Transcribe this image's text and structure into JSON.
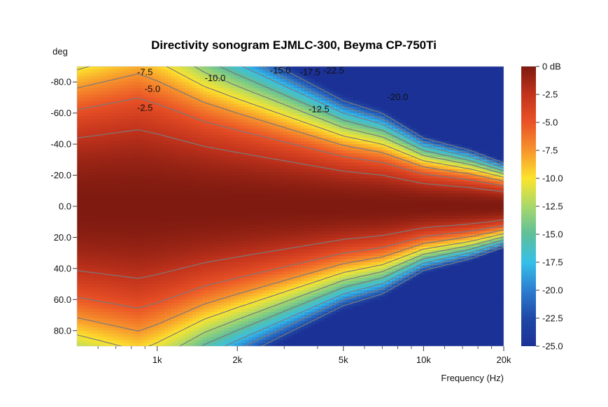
{
  "chart_data": {
    "type": "heatmap",
    "title": "Directivity sonogram EJMLC-300, Beyma CP-750Ti",
    "ylabel": "deg",
    "xlabel": "Frequency (Hz)",
    "x_scale": "log",
    "xlim": [
      500,
      20000
    ],
    "ylim": [
      -90,
      90
    ],
    "y_ticks": [
      -80,
      -60,
      -40,
      -20,
      0,
      20,
      40,
      60,
      80
    ],
    "y_tick_labels": [
      "-80.0",
      "-60.0",
      "-40.0",
      "-20.0",
      "0.0",
      "20.0",
      "40.0",
      "60.0",
      "80.0"
    ],
    "x_ticks": [
      1000,
      2000,
      5000,
      10000,
      20000
    ],
    "x_tick_labels": [
      "1k",
      "2k",
      "5k",
      "10k",
      "20k"
    ],
    "colorbar": {
      "unit_label": "0 dB",
      "range": [
        -25,
        0
      ],
      "ticks": [
        0,
        -2.5,
        -5,
        -7.5,
        -10,
        -12.5,
        -15,
        -17.5,
        -20,
        -22.5,
        -25
      ],
      "tick_labels": [
        "0 dB",
        "-2.5",
        "-5.0",
        "-7.5",
        "-10.0",
        "-12.5",
        "-15.0",
        "-17.5",
        "-20.0",
        "-22.5",
        "-25.0"
      ],
      "colors": [
        "#7e1a10",
        "#c2331c",
        "#ea5226",
        "#f7942c",
        "#fce42c",
        "#a8d86a",
        "#5fbf9a",
        "#35c0e8",
        "#2c7dd0",
        "#1f49a6",
        "#1b3196"
      ]
    },
    "contour_levels": [
      -2.5,
      -5,
      -7.5,
      -10,
      -12.5,
      -15,
      -17.5,
      -20,
      -22.5
    ],
    "contour_labels": [
      {
        "text": "-7.5",
        "freq": 900,
        "deg": -86
      },
      {
        "text": "-5.0",
        "freq": 960,
        "deg": -75
      },
      {
        "text": "-2.5",
        "freq": 900,
        "deg": -63
      },
      {
        "text": "-10.0",
        "freq": 1650,
        "deg": -82
      },
      {
        "text": "-15.0",
        "freq": 2900,
        "deg": -87
      },
      {
        "text": "-17.5",
        "freq": 3750,
        "deg": -86
      },
      {
        "text": "-22.5",
        "freq": 4600,
        "deg": -87
      },
      {
        "text": "-12.5",
        "freq": 4050,
        "deg": -62
      },
      {
        "text": "-20.0",
        "freq": 8000,
        "deg": -70
      }
    ],
    "beamwidth_minus6dB_deg": [
      {
        "freq": 500,
        "half_width": 66
      },
      {
        "freq": 850,
        "half_width": 74
      },
      {
        "freq": 1000,
        "half_width": 70
      },
      {
        "freq": 1500,
        "half_width": 58
      },
      {
        "freq": 2000,
        "half_width": 52
      },
      {
        "freq": 3000,
        "half_width": 44
      },
      {
        "freq": 5000,
        "half_width": 34
      },
      {
        "freq": 7000,
        "half_width": 30
      },
      {
        "freq": 10000,
        "half_width": 22
      },
      {
        "freq": 15000,
        "half_width": 18
      },
      {
        "freq": 20000,
        "half_width": 14
      }
    ]
  }
}
